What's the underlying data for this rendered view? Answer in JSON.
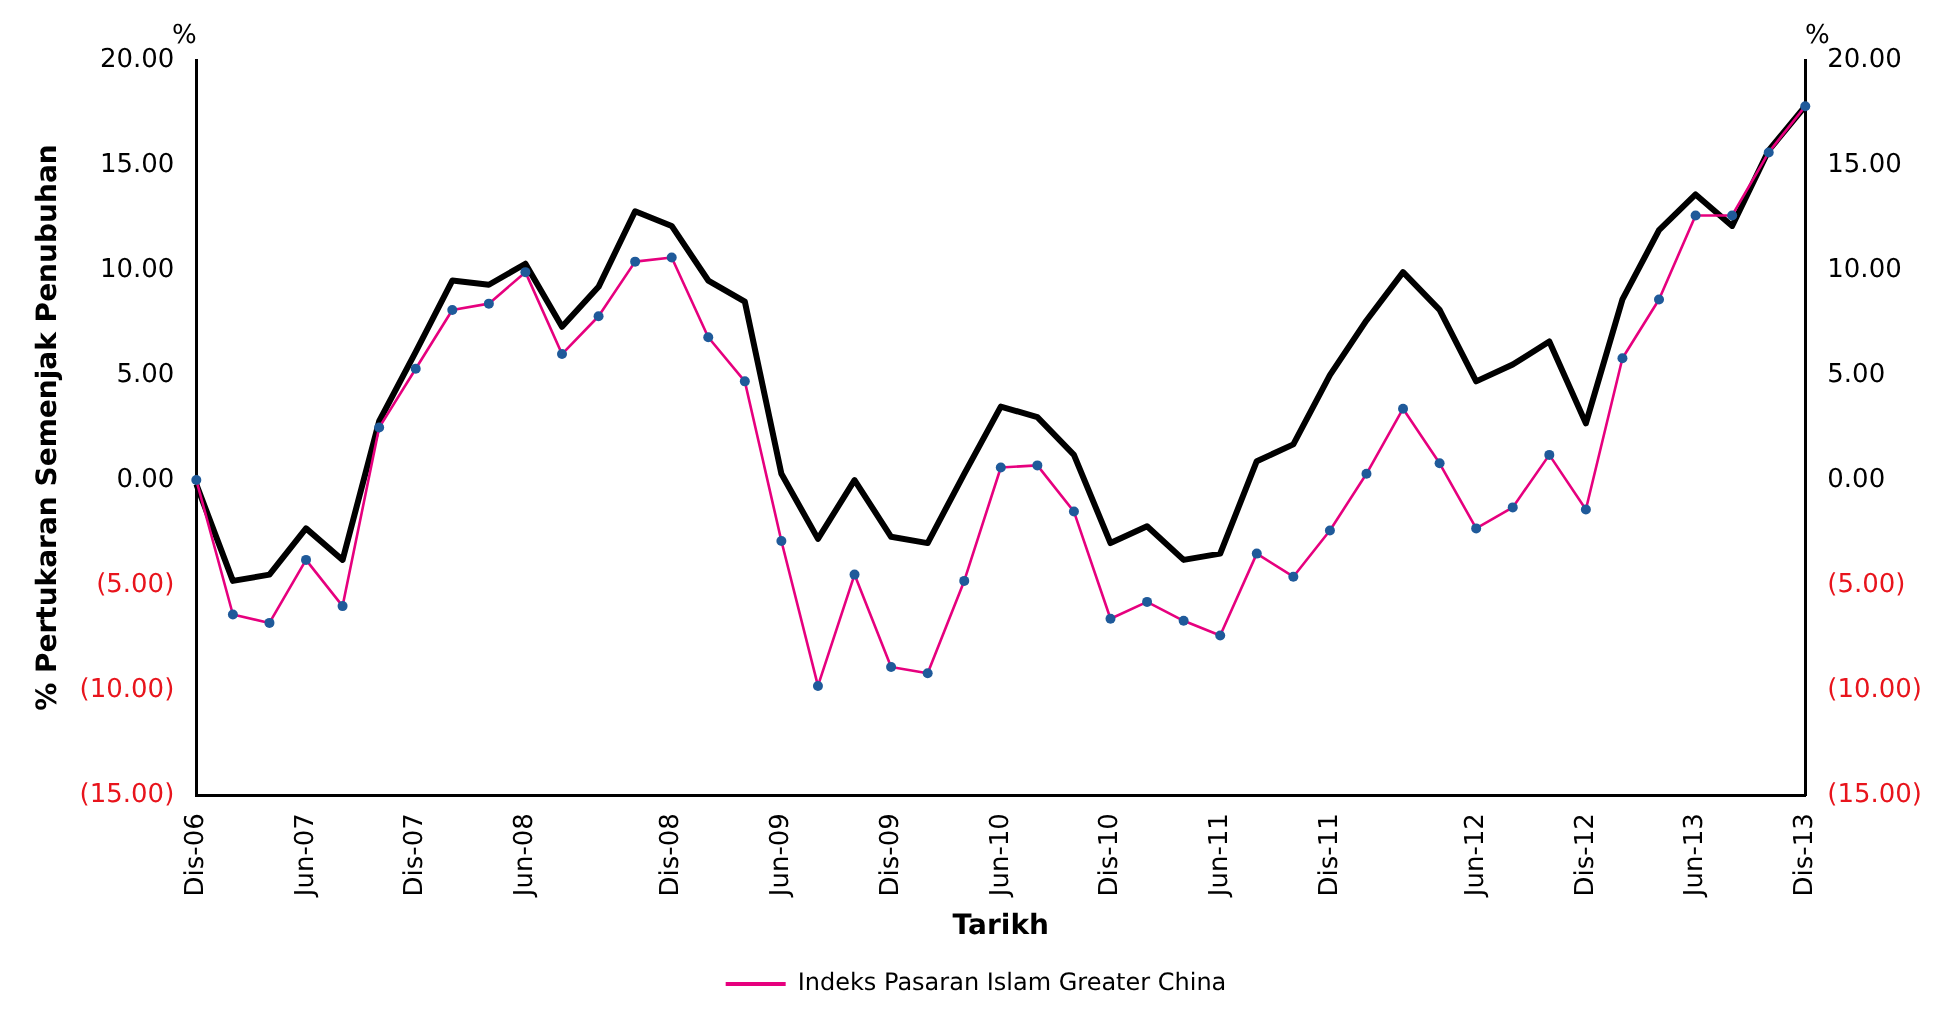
{
  "chart_data": {
    "type": "line",
    "ylabel": "% Pertukaran Semenjak Penubuhan",
    "xlabel": "Tarikh",
    "annotations": [
      "%",
      "%"
    ],
    "categories": [
      "Dis-06",
      null,
      null,
      "Jun-07",
      null,
      null,
      "Dis-07",
      null,
      null,
      "Jun-08",
      null,
      null,
      null,
      "Dis-08",
      null,
      null,
      "Jun-09",
      null,
      null,
      "Dis-09",
      null,
      null,
      "Jun-10",
      null,
      null,
      "Dis-10",
      null,
      null,
      "Jun-11",
      null,
      null,
      "Dis-11",
      null,
      null,
      null,
      "Jun-12",
      null,
      null,
      "Dis-12",
      null,
      null,
      "Jun-13",
      null,
      null,
      "Dis-13"
    ],
    "ylim": [
      -15,
      20
    ],
    "yticks": [
      {
        "value": -15,
        "label": "(15.00)"
      },
      {
        "value": -10,
        "label": "(10.00)"
      },
      {
        "value": -5,
        "label": "(5.00)"
      },
      {
        "value": 0,
        "label": "0.00"
      },
      {
        "value": 5,
        "label": "5.00"
      },
      {
        "value": 10,
        "label": "10.00"
      },
      {
        "value": 15,
        "label": "15.00"
      },
      {
        "value": 20,
        "label": "20.00"
      }
    ],
    "y2lim": [
      -15,
      20
    ],
    "y2ticks": [
      {
        "value": -15,
        "label": "(15.00)"
      },
      {
        "value": -10,
        "label": "(10.00)"
      },
      {
        "value": -5,
        "label": "(5.00)"
      },
      {
        "value": 0,
        "label": "0.00"
      },
      {
        "value": 5,
        "label": "5.00"
      },
      {
        "value": 10,
        "label": "10.00"
      },
      {
        "value": 15,
        "label": "15.00"
      },
      {
        "value": 20,
        "label": "20.00"
      }
    ],
    "grid": false,
    "legend": "bottom",
    "line_style": "solid",
    "series": [
      {
        "color": "#000000",
        "marker": "none",
        "values": [
          -0.2,
          -4.8,
          -4.5,
          -2.3,
          -3.8,
          2.8,
          6.1,
          9.5,
          9.3,
          10.3,
          7.3,
          9.2,
          12.8,
          12.1,
          9.5,
          8.5,
          0.3,
          -2.8,
          0.0,
          -2.7,
          -3.0,
          0.3,
          3.5,
          3.0,
          1.2,
          -3.0,
          -2.2,
          -3.8,
          -3.5,
          0.9,
          1.7,
          5.0,
          7.6,
          9.9,
          8.1,
          4.7,
          5.5,
          6.6,
          2.7,
          8.6,
          11.9,
          13.6,
          12.1,
          15.7,
          17.8
        ]
      },
      {
        "name": "Indeks Pasaran Islam Greater China",
        "color": "#e6007e",
        "marker": "circle",
        "values": [
          0,
          -6.4,
          -6.8,
          -3.8,
          -6.0,
          2.5,
          5.3,
          8.1,
          8.4,
          9.9,
          6.0,
          7.8,
          10.4,
          10.6,
          6.8,
          4.7,
          -2.9,
          -9.8,
          -4.5,
          -8.9,
          -9.2,
          -4.8,
          0.6,
          0.7,
          -1.5,
          -6.6,
          -5.8,
          -6.7,
          -7.4,
          -3.5,
          -4.6,
          -2.4,
          0.3,
          3.4,
          0.8,
          -2.3,
          -1.3,
          1.2,
          -1.4,
          5.8,
          8.6,
          12.6,
          12.6,
          15.6,
          17.8
        ]
      }
    ]
  }
}
